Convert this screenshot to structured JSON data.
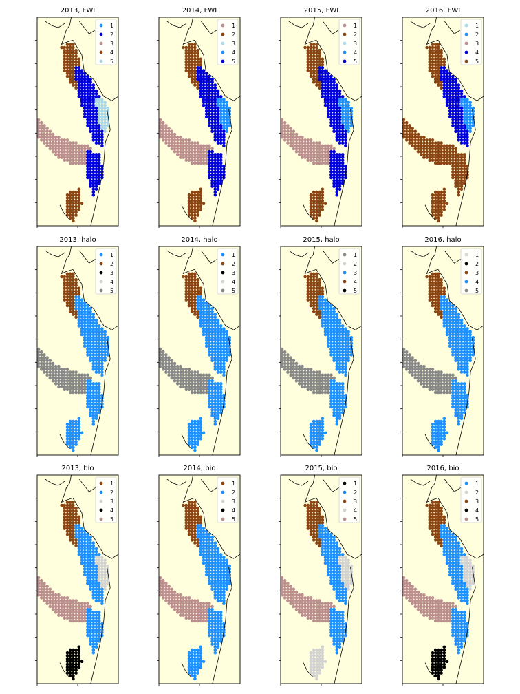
{
  "colors": {
    "background": "#ffffdd",
    "land_outline": "#000000",
    "legend_bg": "#ffffff",
    "cluster_palette": {
      "blue": "#0000dd",
      "dodgerblue": "#1e90ff",
      "lightblue": "#a8d8ea",
      "brown": "#8b4513",
      "rosybrown": "#bc8f8f",
      "black": "#000000",
      "lightgray": "#d3d3d3",
      "gray": "#888888"
    }
  },
  "chart_data": [
    {
      "type": "scatter",
      "title": "2013, FWI",
      "row": 0,
      "col": 0,
      "series": [
        {
          "name": "1",
          "color": "dodgerblue"
        },
        {
          "name": "2",
          "color": "blue"
        },
        {
          "name": "3",
          "color": "rosybrown"
        },
        {
          "name": "4",
          "color": "brown"
        },
        {
          "name": "5",
          "color": "lightblue"
        }
      ],
      "regions": {
        "north": "brown",
        "strait": "blue",
        "east": "lightblue",
        "west_arm": "rosybrown",
        "south": "blue",
        "south_inlets": "brown"
      }
    },
    {
      "type": "scatter",
      "title": "2014, FWI",
      "row": 0,
      "col": 1,
      "series": [
        {
          "name": "1",
          "color": "rosybrown"
        },
        {
          "name": "2",
          "color": "brown"
        },
        {
          "name": "3",
          "color": "lightblue"
        },
        {
          "name": "4",
          "color": "dodgerblue"
        },
        {
          "name": "5",
          "color": "blue"
        }
      ],
      "regions": {
        "north": "brown",
        "strait": "blue",
        "east": "dodgerblue",
        "west_arm": "rosybrown",
        "south": "blue",
        "south_inlets": "brown"
      }
    },
    {
      "type": "scatter",
      "title": "2015, FWI",
      "row": 0,
      "col": 2,
      "series": [
        {
          "name": "1",
          "color": "rosybrown"
        },
        {
          "name": "2",
          "color": "brown"
        },
        {
          "name": "3",
          "color": "lightblue"
        },
        {
          "name": "4",
          "color": "dodgerblue"
        },
        {
          "name": "5",
          "color": "blue"
        }
      ],
      "regions": {
        "north": "brown",
        "strait": "blue",
        "east": "dodgerblue",
        "west_arm": "rosybrown",
        "south": "blue",
        "south_inlets": "brown"
      }
    },
    {
      "type": "scatter",
      "title": "2016, FWI",
      "row": 0,
      "col": 3,
      "series": [
        {
          "name": "1",
          "color": "lightblue"
        },
        {
          "name": "2",
          "color": "dodgerblue"
        },
        {
          "name": "3",
          "color": "rosybrown"
        },
        {
          "name": "4",
          "color": "blue"
        },
        {
          "name": "5",
          "color": "brown"
        }
      ],
      "regions": {
        "north": "brown",
        "strait": "blue",
        "east": "dodgerblue",
        "west_arm": "brown",
        "south": "brown",
        "south_inlets": "brown"
      }
    },
    {
      "type": "scatter",
      "title": "2013, halo",
      "row": 1,
      "col": 0,
      "series": [
        {
          "name": "1",
          "color": "dodgerblue"
        },
        {
          "name": "2",
          "color": "brown"
        },
        {
          "name": "3",
          "color": "black"
        },
        {
          "name": "4",
          "color": "lightgray"
        },
        {
          "name": "5",
          "color": "gray"
        }
      ],
      "regions": {
        "north": "brown",
        "strait": "dodgerblue",
        "east": "dodgerblue",
        "west_arm": "gray",
        "south": "dodgerblue",
        "south_inlets": "dodgerblue"
      }
    },
    {
      "type": "scatter",
      "title": "2014, halo",
      "row": 1,
      "col": 1,
      "series": [
        {
          "name": "1",
          "color": "dodgerblue"
        },
        {
          "name": "2",
          "color": "brown"
        },
        {
          "name": "3",
          "color": "black"
        },
        {
          "name": "4",
          "color": "lightgray"
        },
        {
          "name": "5",
          "color": "gray"
        }
      ],
      "regions": {
        "north": "brown",
        "strait": "dodgerblue",
        "east": "dodgerblue",
        "west_arm": "gray",
        "south": "dodgerblue",
        "south_inlets": "dodgerblue"
      }
    },
    {
      "type": "scatter",
      "title": "2015, halo",
      "row": 1,
      "col": 2,
      "series": [
        {
          "name": "1",
          "color": "gray"
        },
        {
          "name": "2",
          "color": "lightgray"
        },
        {
          "name": "3",
          "color": "dodgerblue"
        },
        {
          "name": "4",
          "color": "brown"
        },
        {
          "name": "5",
          "color": "black"
        }
      ],
      "regions": {
        "north": "brown",
        "strait": "dodgerblue",
        "east": "dodgerblue",
        "west_arm": "gray",
        "south": "dodgerblue",
        "south_inlets": "dodgerblue"
      }
    },
    {
      "type": "scatter",
      "title": "2016, halo",
      "row": 1,
      "col": 3,
      "series": [
        {
          "name": "1",
          "color": "lightgray"
        },
        {
          "name": "2",
          "color": "black"
        },
        {
          "name": "3",
          "color": "brown"
        },
        {
          "name": "4",
          "color": "dodgerblue"
        },
        {
          "name": "5",
          "color": "gray"
        }
      ],
      "regions": {
        "north": "brown",
        "strait": "dodgerblue",
        "east": "dodgerblue",
        "west_arm": "gray",
        "south": "dodgerblue",
        "south_inlets": "dodgerblue"
      }
    },
    {
      "type": "scatter",
      "title": "2013, bio",
      "row": 2,
      "col": 0,
      "series": [
        {
          "name": "1",
          "color": "brown"
        },
        {
          "name": "2",
          "color": "dodgerblue"
        },
        {
          "name": "3",
          "color": "lightgray"
        },
        {
          "name": "4",
          "color": "black"
        },
        {
          "name": "5",
          "color": "rosybrown"
        }
      ],
      "regions": {
        "north": "brown",
        "strait": "dodgerblue",
        "east": "lightgray",
        "west_arm": "rosybrown",
        "south": "dodgerblue",
        "south_inlets": "black"
      }
    },
    {
      "type": "scatter",
      "title": "2014, bio",
      "row": 2,
      "col": 1,
      "series": [
        {
          "name": "1",
          "color": "brown"
        },
        {
          "name": "2",
          "color": "dodgerblue"
        },
        {
          "name": "3",
          "color": "lightgray"
        },
        {
          "name": "4",
          "color": "black"
        },
        {
          "name": "5",
          "color": "rosybrown"
        }
      ],
      "regions": {
        "north": "brown",
        "strait": "dodgerblue",
        "east": "dodgerblue",
        "west_arm": "rosybrown",
        "south": "dodgerblue",
        "south_inlets": "dodgerblue"
      }
    },
    {
      "type": "scatter",
      "title": "2015, bio",
      "row": 2,
      "col": 2,
      "series": [
        {
          "name": "1",
          "color": "black"
        },
        {
          "name": "2",
          "color": "dodgerblue"
        },
        {
          "name": "3",
          "color": "brown"
        },
        {
          "name": "4",
          "color": "lightgray"
        },
        {
          "name": "5",
          "color": "rosybrown"
        }
      ],
      "regions": {
        "north": "brown",
        "strait": "dodgerblue",
        "east": "lightgray",
        "west_arm": "rosybrown",
        "south": "dodgerblue",
        "south_inlets": "lightgray"
      }
    },
    {
      "type": "scatter",
      "title": "2016, bio",
      "row": 2,
      "col": 3,
      "series": [
        {
          "name": "1",
          "color": "dodgerblue"
        },
        {
          "name": "2",
          "color": "lightgray"
        },
        {
          "name": "3",
          "color": "brown"
        },
        {
          "name": "4",
          "color": "black"
        },
        {
          "name": "5",
          "color": "rosybrown"
        }
      ],
      "regions": {
        "north": "brown",
        "strait": "dodgerblue",
        "east": "lightgray",
        "west_arm": "rosybrown",
        "south": "dodgerblue",
        "south_inlets": "black"
      }
    }
  ]
}
